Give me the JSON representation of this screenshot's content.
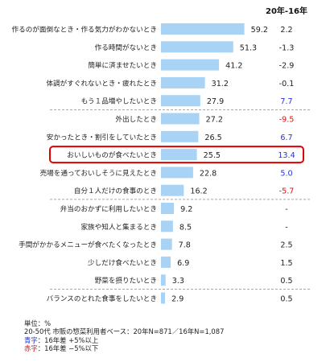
{
  "chart_data": {
    "type": "bar",
    "orientation": "horizontal",
    "diff_header": "20年-16年",
    "categories": [
      "作るのが面倒なとき・作る気力がわかないとき",
      "作る時間がないとき",
      "簡単に済ませたいとき",
      "体調がすぐれないとき・疲れたとき",
      "もう１品増やしたいとき",
      "外出したとき",
      "安かったとき・割引をしていたとき",
      "おいしいものが食べたいとき",
      "売場を通っておいしそうに見えたとき",
      "自分１人だけの食事のとき",
      "弁当のおかずに利用したいとき",
      "家族や知人と集まるとき",
      "手間がかかるメニューが食べたくなったとき",
      "少しだけ食べたいとき",
      "野菜を摂りたいとき",
      "バランスのとれた食事をしたいとき"
    ],
    "values": [
      59.2,
      51.3,
      41.2,
      31.2,
      27.9,
      27.2,
      26.5,
      25.5,
      22.8,
      16.2,
      9.2,
      8.5,
      7.8,
      6.9,
      3.3,
      2.9
    ],
    "values_text": [
      "59.2",
      "51.3",
      "41.2",
      "31.2",
      "27.9",
      "27.2",
      "26.5",
      "25.5",
      "22.8",
      "16.2",
      "9.2",
      "8.5",
      "7.8",
      "6.9",
      "3.3",
      "2.9"
    ],
    "diffs": [
      "2.2",
      "-1.3",
      "-2.9",
      "-0.1",
      "7.7",
      "-9.5",
      "6.7",
      "13.4",
      "5.0",
      "-5.7",
      "-",
      "-",
      "2.5",
      "1.5",
      "0.5",
      "0.5"
    ],
    "highlight": "おいしいものが食べたいとき",
    "group_separators_after": [
      "もう１品増やしたいとき",
      "自分１人だけの食事のとき",
      "野菜を摂りたいとき"
    ],
    "unit": "%",
    "colors": {
      "bar": "#a9d3f5",
      "positive": "#2233dd",
      "negative": "#dd1111",
      "highlight": "#dd0000",
      "neutral": "#222222",
      "separator": "#888888"
    }
  },
  "notes": {
    "unit": "単位：%",
    "base": "20-50代 市販の惣菜利用者ベース：20年N=871／16年N=1,087",
    "blue_label": "青字",
    "blue_text": "：16年差 +5%以上",
    "red_label": "赤字",
    "red_text": "：16年差 −5%以下"
  }
}
